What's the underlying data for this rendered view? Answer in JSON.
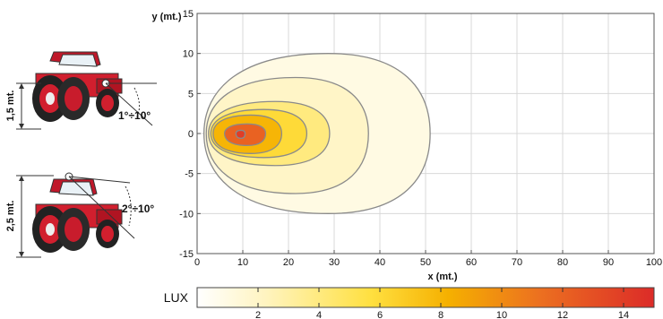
{
  "chart_data": {
    "type": "contour",
    "ylabel": "y (mt.)",
    "xlabel": "x (mt.)",
    "xlim": [
      0,
      100
    ],
    "ylim": [
      -15,
      15
    ],
    "x_ticks": [
      "0",
      "10",
      "20",
      "30",
      "40",
      "50",
      "60",
      "70",
      "80",
      "90",
      "100"
    ],
    "y_ticks": [
      "15",
      "10",
      "5",
      "0",
      "-5",
      "-10",
      "-15"
    ],
    "grid": true,
    "isolux_contours": [
      {
        "lux": 1,
        "x_min": 1.5,
        "x_max": 51,
        "y_max": 10,
        "y_min": -10
      },
      {
        "lux": 2,
        "x_min": 2,
        "x_max": 37.5,
        "y_max": 7,
        "y_min": -7.5
      },
      {
        "lux": 4,
        "x_min": 2.5,
        "x_max": 29,
        "y_max": 4,
        "y_min": -4
      },
      {
        "lux": 6,
        "x_min": 3,
        "x_max": 24,
        "y_max": 3,
        "y_min": -3
      },
      {
        "lux": 8,
        "x_min": 3.5,
        "x_max": 18.5,
        "y_max": 2.3,
        "y_min": -2.5
      },
      {
        "lux": 12,
        "x_min": 6,
        "x_max": 15,
        "y_max": 1.2,
        "y_min": -1.5
      },
      {
        "lux": 14,
        "x_min": 8.5,
        "x_max": 10.5,
        "y_max": 0.4,
        "y_min": -0.6
      }
    ],
    "colorbar": {
      "label": "LUX",
      "ticks": [
        "2",
        "4",
        "6",
        "8",
        "10",
        "12",
        "14"
      ],
      "range": [
        0,
        15
      ],
      "colors": [
        "#ffffff",
        "#fff4c0",
        "#ffe040",
        "#f5b000",
        "#ec7020",
        "#dc2b28"
      ]
    },
    "setups": [
      {
        "height_label": "1,5 mt.",
        "angle_label": "1°÷10°"
      },
      {
        "height_label": "2,5 mt.",
        "angle_label": "2°÷10°"
      }
    ]
  }
}
